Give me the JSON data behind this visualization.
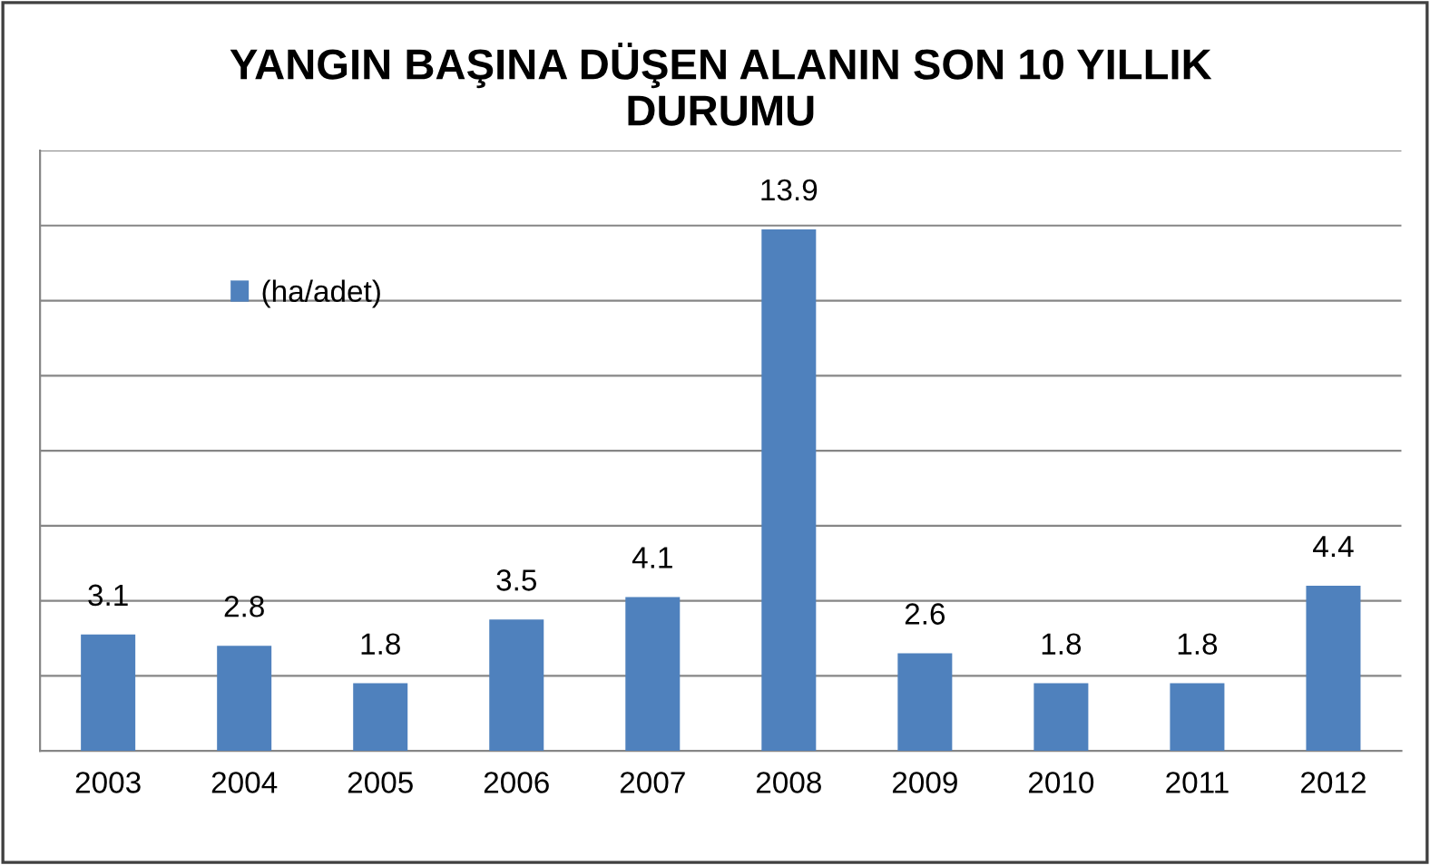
{
  "chart_data": {
    "type": "bar",
    "title": "YANGIN BAŞINA DÜŞEN ALANIN SON 10 YILLIK\nDURUMU",
    "categories": [
      "2003",
      "2004",
      "2005",
      "2006",
      "2007",
      "2008",
      "2009",
      "2010",
      "2011",
      "2012"
    ],
    "series": [
      {
        "name": "(ha/adet)",
        "color": "#4f81bd",
        "values": [
          3.1,
          2.8,
          1.8,
          3.5,
          4.1,
          13.9,
          2.6,
          1.8,
          1.8,
          4.4
        ]
      }
    ],
    "ylim": [
      0,
      16
    ],
    "yticks": [
      {
        "value": 0,
        "label": null
      },
      {
        "value": 2,
        "label": null
      },
      {
        "value": 4,
        "label": null
      },
      {
        "value": 6,
        "label": null
      },
      {
        "value": 8,
        "label": null
      },
      {
        "value": 10,
        "label": null
      },
      {
        "value": 12,
        "label": null
      },
      {
        "value": 14,
        "label": null
      },
      {
        "value": 16,
        "label": null
      }
    ],
    "tick_labels": "x",
    "grid": "y",
    "legend": "upper left",
    "data_labels": true
  }
}
